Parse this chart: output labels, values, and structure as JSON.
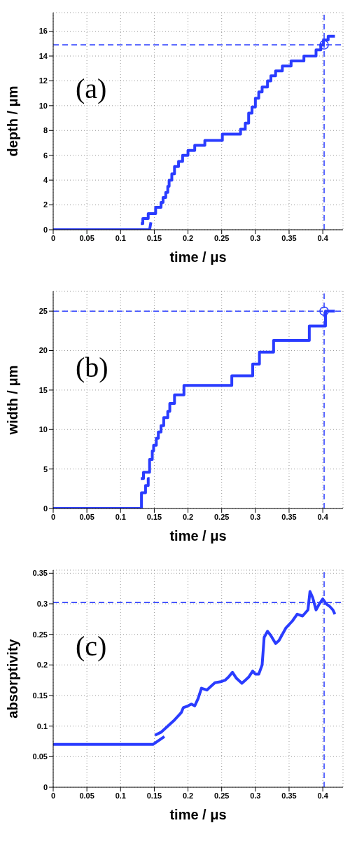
{
  "chart_data": [
    {
      "type": "step",
      "annotations": [
        "(a)"
      ],
      "xlabel": "time / μs",
      "ylabel": "depth / μm",
      "xlim": [
        0,
        0.43
      ],
      "xticks": [
        0,
        0.05,
        0.1,
        0.15,
        0.2,
        0.25,
        0.3,
        0.35,
        0.4
      ],
      "ylim": [
        0,
        17.5
      ],
      "yticks": [
        0,
        2,
        4,
        6,
        8,
        10,
        12,
        14,
        16
      ],
      "grid": true,
      "ref_lines": [
        {
          "axis": "y",
          "value": 14.9,
          "color": "#2a3cff",
          "line_style": "dashed"
        },
        {
          "axis": "x",
          "value": 0.402,
          "color": "#2a3cff",
          "line_style": "dashed"
        }
      ],
      "series": [
        {
          "type": "line",
          "color": "#2a3cff",
          "x": [
            0,
            0.143,
            0.145
          ],
          "values": [
            0,
            0,
            0.6
          ]
        },
        {
          "color": "#2a3cff",
          "x": [
            0.13,
            0.133,
            0.141,
            0.152,
            0.16,
            0.163,
            0.167,
            0.17,
            0.172,
            0.176,
            0.18,
            0.186,
            0.192,
            0.2,
            0.21,
            0.225,
            0.251,
            0.278,
            0.285,
            0.29,
            0.295,
            0.3,
            0.305,
            0.31,
            0.318,
            0.323,
            0.33,
            0.34,
            0.353,
            0.372,
            0.39,
            0.397,
            0.401,
            0.408,
            0.418
          ],
          "values": [
            0.5,
            0.9,
            1.3,
            1.8,
            2.2,
            2.6,
            3.0,
            3.5,
            4.0,
            4.5,
            5.1,
            5.5,
            6.0,
            6.4,
            6.8,
            7.2,
            7.7,
            8.1,
            8.6,
            9.4,
            9.9,
            10.6,
            11.1,
            11.5,
            12.0,
            12.4,
            12.8,
            13.2,
            13.6,
            14.0,
            14.5,
            14.9,
            15.3,
            15.6,
            15.6
          ]
        },
        {
          "type": "scatter",
          "color": "#2a3cff",
          "marker": "circle",
          "x": [
            0.402
          ],
          "values": [
            14.9
          ]
        }
      ]
    },
    {
      "type": "step",
      "annotations": [
        "(b)"
      ],
      "xlabel": "time / μs",
      "ylabel": "width / μm",
      "xlim": [
        0,
        0.43
      ],
      "xticks": [
        0,
        0.05,
        0.1,
        0.15,
        0.2,
        0.25,
        0.3,
        0.35,
        0.4
      ],
      "ylim": [
        0,
        27.5
      ],
      "yticks": [
        0,
        5,
        10,
        15,
        20,
        25
      ],
      "grid": true,
      "ref_lines": [
        {
          "axis": "y",
          "value": 25,
          "color": "#2a3cff",
          "line_style": "dashed"
        },
        {
          "axis": "x",
          "value": 0.402,
          "color": "#2a3cff",
          "line_style": "dashed"
        }
      ],
      "series": [
        {
          "color": "#2a3cff",
          "x": [
            0,
            0.131,
            0.137,
            0.141,
            0.143
          ],
          "values": [
            0,
            2.0,
            2.9,
            3.8,
            3.8
          ]
        },
        {
          "color": "#2a3cff",
          "x": [
            0.13,
            0.134,
            0.143,
            0.147,
            0.149,
            0.153,
            0.156,
            0.16,
            0.164,
            0.17,
            0.173,
            0.18,
            0.194,
            0.265,
            0.296,
            0.306,
            0.327,
            0.38,
            0.404,
            0.418
          ],
          "values": [
            3.8,
            4.6,
            6.2,
            7.3,
            8.0,
            8.9,
            9.7,
            10.5,
            11.5,
            12.3,
            13.3,
            14.4,
            15.6,
            16.8,
            18.3,
            19.8,
            21.3,
            23.1,
            25.0,
            25.0
          ]
        },
        {
          "type": "scatter",
          "color": "#2a3cff",
          "marker": "circle",
          "x": [
            0.402
          ],
          "values": [
            25
          ]
        }
      ]
    },
    {
      "type": "line",
      "annotations": [
        "(c)"
      ],
      "xlabel": "time / μs",
      "ylabel": "absorptivity",
      "xlim": [
        0,
        0.43
      ],
      "xticks": [
        0,
        0.05,
        0.1,
        0.15,
        0.2,
        0.25,
        0.3,
        0.35,
        0.4
      ],
      "ylim": [
        0,
        0.355
      ],
      "yticks": [
        0,
        0.05,
        0.1,
        0.15,
        0.2,
        0.25,
        0.3,
        0.35
      ],
      "grid": true,
      "ref_lines": [
        {
          "axis": "y",
          "value": 0.302,
          "color": "#2a3cff",
          "line_style": "dashed"
        },
        {
          "axis": "x",
          "value": 0.402,
          "color": "#2a3cff",
          "line_style": "dashed"
        }
      ],
      "series": [
        {
          "color": "#2a3cff",
          "x": [
            0,
            0.148,
            0.165
          ],
          "values": [
            0.07,
            0.07,
            0.083
          ]
        },
        {
          "color": "#2a3cff",
          "x": [
            0.151,
            0.16,
            0.17,
            0.18,
            0.19,
            0.193,
            0.2,
            0.205,
            0.21,
            0.215,
            0.22,
            0.228,
            0.235,
            0.24,
            0.25,
            0.255,
            0.26,
            0.266,
            0.272,
            0.28,
            0.285,
            0.29,
            0.296,
            0.3,
            0.305,
            0.31,
            0.313,
            0.318,
            0.323,
            0.33,
            0.335,
            0.345,
            0.355,
            0.362,
            0.37,
            0.378,
            0.381,
            0.385,
            0.39,
            0.395,
            0.4,
            0.405,
            0.41,
            0.415,
            0.418
          ],
          "values": [
            0.085,
            0.09,
            0.1,
            0.11,
            0.122,
            0.13,
            0.133,
            0.136,
            0.133,
            0.145,
            0.162,
            0.159,
            0.166,
            0.171,
            0.173,
            0.175,
            0.18,
            0.188,
            0.178,
            0.17,
            0.175,
            0.18,
            0.19,
            0.185,
            0.185,
            0.2,
            0.245,
            0.255,
            0.248,
            0.235,
            0.24,
            0.26,
            0.272,
            0.283,
            0.28,
            0.29,
            0.32,
            0.31,
            0.29,
            0.3,
            0.308,
            0.3,
            0.296,
            0.29,
            0.283
          ]
        }
      ]
    }
  ]
}
